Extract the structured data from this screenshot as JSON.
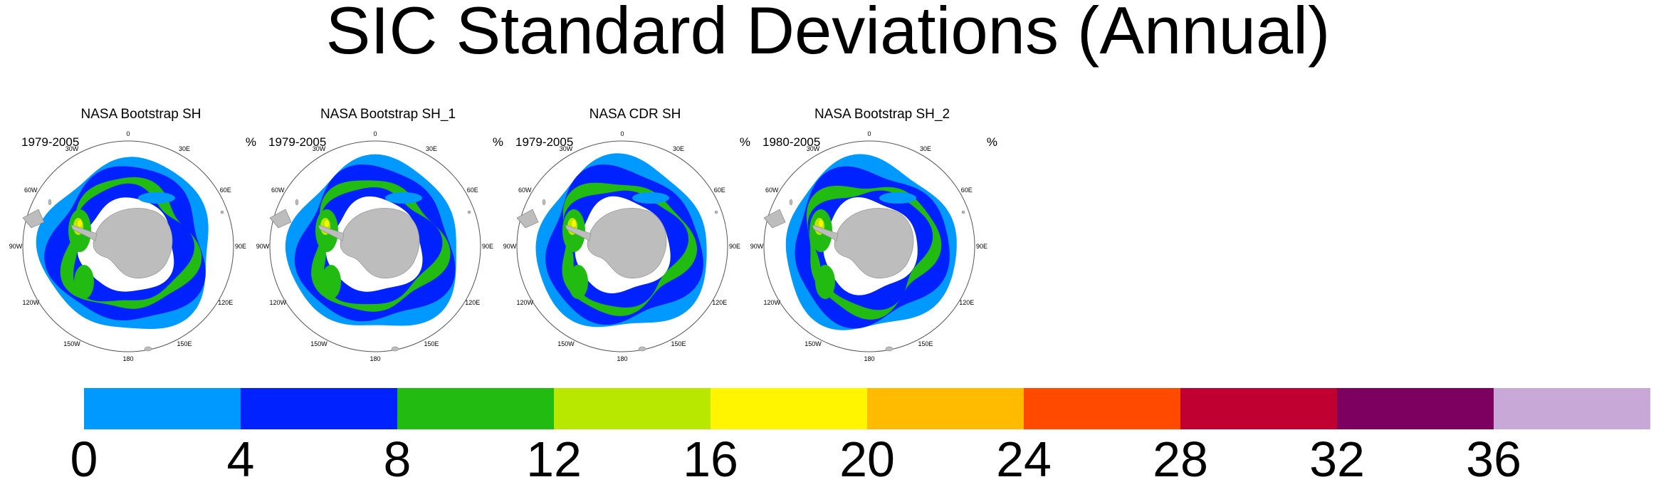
{
  "title": "SIC Standard Deviations (Annual)",
  "chart_data": {
    "type": "heatmap",
    "title": "SIC Standard Deviations (Annual)",
    "projection": "south polar stereographic",
    "units": "%",
    "panels": [
      {
        "name": "NASA Bootstrap SH",
        "period": "1979-2005",
        "unit": "%"
      },
      {
        "name": "NASA Bootstrap SH_1",
        "period": "1979-2005",
        "unit": "%"
      },
      {
        "name": "NASA CDR SH",
        "period": "1979-2005",
        "unit": "%"
      },
      {
        "name": "NASA Bootstrap SH_2",
        "period": "1980-2005",
        "unit": "%"
      }
    ],
    "longitude_labels": [
      "0",
      "30E",
      "60E",
      "90E",
      "120E",
      "150E",
      "180",
      "150W",
      "120W",
      "90W",
      "60W",
      "30W"
    ],
    "colorbar": {
      "levels": [
        0,
        4,
        8,
        12,
        16,
        20,
        24,
        28,
        32,
        36
      ],
      "tick_labels": [
        "0",
        "4",
        "8",
        "12",
        "16",
        "20",
        "24",
        "28",
        "32",
        "36"
      ],
      "colors": [
        "#0099ff",
        "#0022ff",
        "#22bb11",
        "#b8e800",
        "#fff500",
        "#ffbb00",
        "#ff4a00",
        "#c00030",
        "#7d0060",
        "#c8a8d6"
      ]
    }
  }
}
